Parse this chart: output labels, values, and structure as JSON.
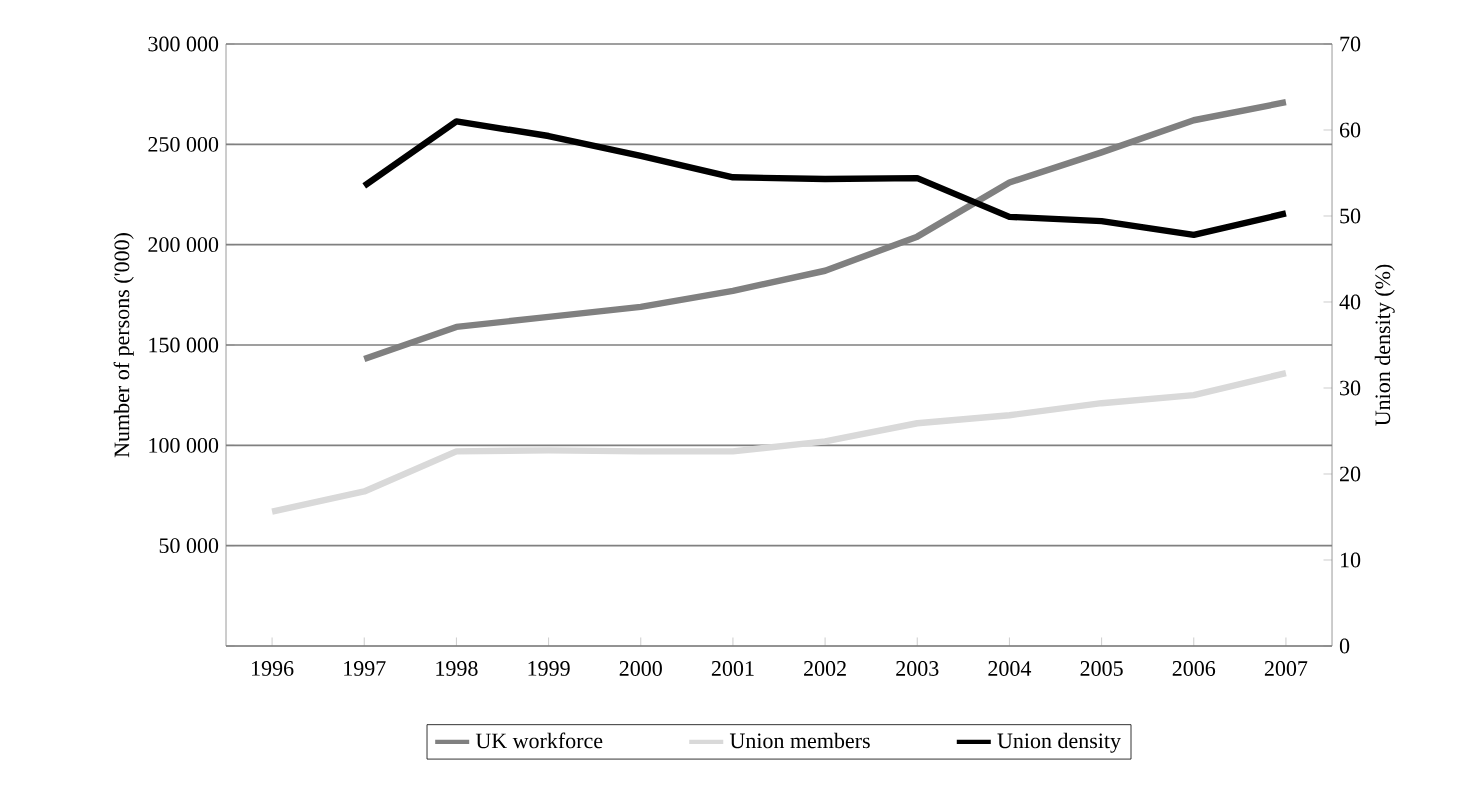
{
  "chart_data": {
    "type": "line",
    "categories": [
      "1996",
      "1997",
      "1998",
      "1999",
      "2000",
      "2001",
      "2002",
      "2003",
      "2004",
      "2005",
      "2006",
      "2007"
    ],
    "series": [
      {
        "name": "UK workforce",
        "color": "#808080",
        "values": [
          null,
          143000,
          159000,
          164000,
          169000,
          177000,
          187000,
          204000,
          231000,
          246000,
          262000,
          271000
        ]
      },
      {
        "name": "Union members",
        "color": "#d9d9d9",
        "values": [
          67000,
          77000,
          97000,
          97500,
          97000,
          97000,
          102000,
          111000,
          115000,
          121000,
          125000,
          136000
        ]
      },
      {
        "name": "Union density",
        "color": "#000000",
        "axis": "y2",
        "values": [
          null,
          53.5,
          61,
          59.3,
          57,
          54.5,
          54.3,
          54.4,
          49.9,
          49.4,
          47.8,
          50.3
        ]
      }
    ],
    "ylabel": "Number of persons ('000)",
    "y2label": "Union density (%)",
    "ylim": [
      0,
      300000
    ],
    "yticks": [
      {
        "value": 0,
        "label": null
      },
      {
        "value": 50000,
        "label": "50 000"
      },
      {
        "value": 100000,
        "label": "100 000"
      },
      {
        "value": 150000,
        "label": "150 000"
      },
      {
        "value": 200000,
        "label": "200 000"
      },
      {
        "value": 250000,
        "label": "250 000"
      },
      {
        "value": 300000,
        "label": "300 000"
      }
    ],
    "y2lim": [
      0,
      70
    ],
    "y2ticks": [
      0,
      10,
      20,
      30,
      40,
      50,
      60,
      70
    ],
    "grid": "y",
    "legend": "bottom",
    "marker": "none",
    "line_style": "solid"
  }
}
